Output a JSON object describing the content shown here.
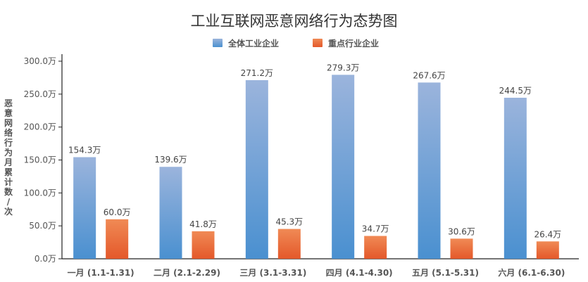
{
  "chart_data": {
    "type": "bar",
    "title": "工业互联网恶意网络行为态势图",
    "ylabel": "恶意网络行为月累计数 / 次",
    "xlabel": "",
    "categories": [
      "一月 (1.1-1.31)",
      "二月 (2.1-2.29)",
      "三月 (3.1-3.31)",
      "四月 (4.1-4.30)",
      "五月 (5.1-5.31)",
      "六月 (6.1-6.30)"
    ],
    "series": [
      {
        "name": "全体工业企业",
        "values": [
          154.3,
          139.6,
          271.2,
          279.3,
          267.6,
          244.5
        ],
        "labels": [
          "154.3万",
          "139.6万",
          "271.2万",
          "279.3万",
          "267.6万",
          "244.5万"
        ],
        "color_top": "#9bb4dc",
        "color_bottom": "#4a90d0"
      },
      {
        "name": "重点行业企业",
        "values": [
          60.0,
          41.8,
          45.3,
          34.7,
          30.6,
          26.4
        ],
        "labels": [
          "60.0万",
          "41.8万",
          "45.3万",
          "34.7万",
          "30.6万",
          "26.4万"
        ],
        "color_top": "#f08a55",
        "color_bottom": "#e4582a"
      }
    ],
    "ylim": [
      0,
      300
    ],
    "yticks": [
      0,
      50,
      100,
      150,
      200,
      250,
      300
    ],
    "ytick_labels": [
      "0.0万",
      "50.0万",
      "100.0万",
      "150.0万",
      "200.0万",
      "250.0万",
      "300.0万"
    ],
    "legend_position": "top-center",
    "grid": false
  }
}
